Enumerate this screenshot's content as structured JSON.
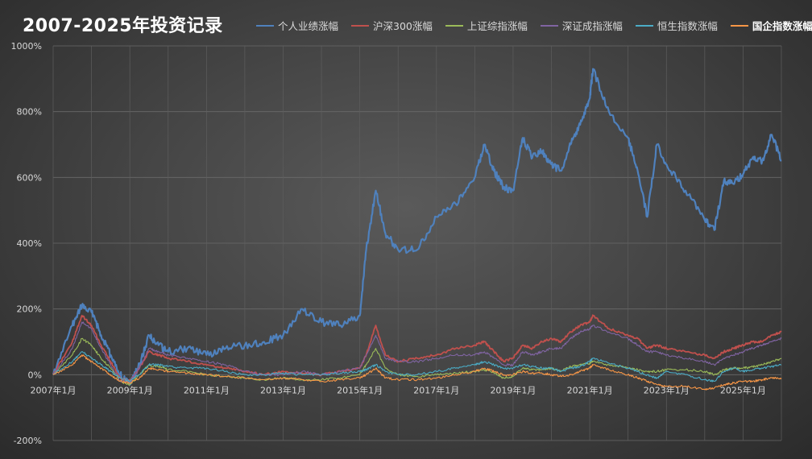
{
  "chart_data": {
    "type": "line",
    "title": "2007-2025年投资记录",
    "xlabel": "",
    "ylabel": "",
    "x_range": [
      "2007-01",
      "2026-01"
    ],
    "x_ticks": [
      "2007年1月",
      "2009年1月",
      "2011年1月",
      "2013年1月",
      "2015年1月",
      "2017年1月",
      "2019年1月",
      "2021年1月",
      "2023年1月",
      "2025年1月"
    ],
    "ylim": [
      -200,
      1000
    ],
    "y_ticks": [
      "-200%",
      "0%",
      "200%",
      "400%",
      "600%",
      "800%",
      "1000%"
    ],
    "y_tick_values": [
      -200,
      0,
      200,
      400,
      600,
      800,
      1000
    ],
    "grid": true,
    "legend_position": "top",
    "x": [
      "2007-01",
      "2007-07",
      "2007-10",
      "2008-01",
      "2008-04",
      "2008-07",
      "2008-10",
      "2009-01",
      "2009-04",
      "2009-07",
      "2009-10",
      "2010-01",
      "2010-07",
      "2011-01",
      "2011-07",
      "2012-01",
      "2012-07",
      "2013-01",
      "2013-07",
      "2014-01",
      "2014-07",
      "2015-01",
      "2015-03",
      "2015-06",
      "2015-09",
      "2016-01",
      "2016-07",
      "2017-01",
      "2017-07",
      "2018-01",
      "2018-04",
      "2018-07",
      "2018-10",
      "2019-01",
      "2019-04",
      "2019-07",
      "2019-10",
      "2020-01",
      "2020-04",
      "2020-07",
      "2020-10",
      "2021-01",
      "2021-02",
      "2021-07",
      "2022-01",
      "2022-04",
      "2022-07",
      "2022-10",
      "2023-01",
      "2023-07",
      "2024-01",
      "2024-04",
      "2024-07",
      "2024-10",
      "2025-01",
      "2025-04",
      "2025-07",
      "2025-10",
      "2026-01"
    ],
    "series": [
      {
        "name": "个人业绩涨幅",
        "color": "#4f81bd",
        "bold_legend": false,
        "values": [
          0,
          150,
          210,
          190,
          120,
          60,
          0,
          -30,
          30,
          120,
          90,
          70,
          80,
          60,
          80,
          90,
          100,
          120,
          200,
          160,
          150,
          180,
          380,
          560,
          430,
          380,
          380,
          480,
          520,
          600,
          700,
          620,
          570,
          560,
          720,
          660,
          680,
          640,
          620,
          700,
          760,
          840,
          930,
          800,
          720,
          620,
          480,
          700,
          640,
          560,
          470,
          440,
          590,
          580,
          610,
          660,
          650,
          730,
          650
        ]
      },
      {
        "name": "沪深300涨幅",
        "color": "#c0504d",
        "bold_legend": false,
        "values": [
          0,
          100,
          180,
          150,
          90,
          40,
          -10,
          -20,
          20,
          70,
          60,
          50,
          40,
          30,
          20,
          10,
          0,
          10,
          5,
          0,
          10,
          20,
          60,
          150,
          60,
          40,
          50,
          60,
          80,
          90,
          100,
          70,
          40,
          50,
          90,
          80,
          100,
          110,
          100,
          130,
          150,
          160,
          180,
          140,
          120,
          110,
          80,
          90,
          80,
          70,
          60,
          50,
          70,
          80,
          90,
          100,
          100,
          120,
          130
        ]
      },
      {
        "name": "上证综指涨幅",
        "color": "#9bbb59",
        "bold_legend": false,
        "values": [
          0,
          60,
          110,
          90,
          50,
          20,
          -20,
          -30,
          0,
          30,
          25,
          15,
          10,
          0,
          -5,
          -10,
          -15,
          -10,
          -15,
          -15,
          -10,
          0,
          30,
          80,
          20,
          0,
          -5,
          0,
          5,
          10,
          15,
          5,
          -10,
          -5,
          20,
          15,
          15,
          20,
          10,
          25,
          30,
          35,
          40,
          30,
          20,
          15,
          10,
          10,
          15,
          15,
          10,
          0,
          15,
          20,
          20,
          25,
          30,
          40,
          50
        ]
      },
      {
        "name": "深证成指涨幅",
        "color": "#8064a2",
        "bold_legend": false,
        "values": [
          0,
          80,
          160,
          140,
          80,
          30,
          -20,
          -20,
          20,
          80,
          70,
          60,
          50,
          40,
          30,
          10,
          0,
          0,
          10,
          0,
          10,
          20,
          60,
          120,
          50,
          40,
          40,
          50,
          60,
          60,
          70,
          50,
          30,
          30,
          70,
          60,
          70,
          80,
          80,
          110,
          130,
          140,
          150,
          130,
          110,
          90,
          70,
          70,
          60,
          50,
          40,
          30,
          50,
          60,
          70,
          80,
          90,
          100,
          110
        ]
      },
      {
        "name": "恒生指数涨幅",
        "color": "#4bacc6",
        "bold_legend": false,
        "values": [
          0,
          40,
          70,
          50,
          30,
          10,
          -10,
          -20,
          0,
          30,
          30,
          25,
          20,
          20,
          10,
          0,
          0,
          5,
          0,
          0,
          5,
          10,
          15,
          30,
          10,
          0,
          0,
          10,
          20,
          30,
          40,
          30,
          20,
          20,
          30,
          25,
          20,
          20,
          10,
          20,
          25,
          40,
          50,
          35,
          20,
          10,
          0,
          -10,
          10,
          0,
          -15,
          -20,
          10,
          20,
          10,
          15,
          20,
          25,
          30
        ]
      },
      {
        "name": "国企指数涨幅",
        "color": "#f79646",
        "bold_legend": true,
        "values": [
          0,
          30,
          60,
          40,
          20,
          0,
          -20,
          -25,
          -10,
          20,
          15,
          10,
          5,
          0,
          -5,
          -10,
          -15,
          -10,
          -15,
          -20,
          -15,
          -10,
          0,
          20,
          -10,
          -15,
          -15,
          -10,
          0,
          10,
          20,
          10,
          0,
          0,
          10,
          5,
          5,
          0,
          -5,
          0,
          10,
          20,
          30,
          15,
          0,
          -10,
          -20,
          -30,
          -35,
          -35,
          -45,
          -40,
          -30,
          -25,
          -20,
          -20,
          -15,
          -10,
          -10
        ]
      }
    ]
  }
}
